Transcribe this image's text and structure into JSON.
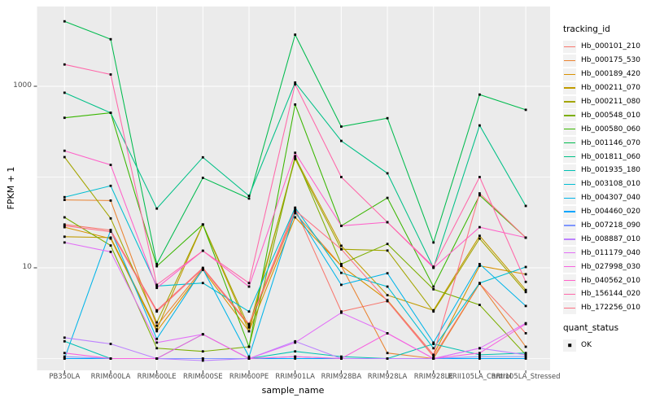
{
  "chart_data": {
    "type": "line",
    "title": "",
    "xlabel": "sample_name",
    "ylabel": "FPKM + 1",
    "scale": "log10",
    "ylim": [
      0.74,
      7500
    ],
    "grid": true,
    "legend_position": "right",
    "y_ticks": [
      {
        "label": "10",
        "value": 10
      },
      {
        "label": "1000",
        "value": 1000
      }
    ],
    "y_gridlines_major": [
      10,
      1000
    ],
    "y_gridlines_minor": [
      1,
      100
    ],
    "categories": [
      "PB350LA",
      "RRIM600LA",
      "RRIM600LE",
      "RRIM600SE",
      "RRIM600PE",
      "RRIM901LA",
      "RRIM928BA",
      "RRIM928LA",
      "RRIM928LE",
      "RRII105LA_Control",
      "RRII105LA_Stressed"
    ],
    "legend": {
      "tracking_title": "tracking_id",
      "quant_title": "quant_status",
      "quant_items": [
        {
          "label": "OK"
        }
      ]
    },
    "colors": {
      "panel_bg": "#EBEBEB",
      "grid": "#FFFFFF",
      "point": "#000000",
      "tick_text": "#4D4D4D",
      "tick_mark": "#333333",
      "legend_key_bg": "#F2F2F2"
    },
    "series": [
      {
        "id": "Hb_000101_210",
        "color": "#F8766D",
        "values": [
          30,
          26,
          3.4,
          10,
          2.4,
          45,
          3.3,
          4.3,
          1.05,
          6.7,
          1.9
        ]
      },
      {
        "id": "Hb_000175_530",
        "color": "#EA8331",
        "values": [
          56,
          55,
          2.3,
          9.8,
          2.3,
          40,
          10.5,
          1.15,
          1.0,
          6.7,
          1.35
        ]
      },
      {
        "id": "Hb_000189_420",
        "color": "#D89000",
        "values": [
          28,
          21,
          2.0,
          9.5,
          2.0,
          36,
          10.5,
          4.4,
          1.1,
          10.5,
          8.5
        ]
      },
      {
        "id": "Hb_000211_070",
        "color": "#C09B00",
        "values": [
          22,
          21.5,
          2.1,
          30,
          2.0,
          165,
          17.5,
          5.0,
          3.4,
          22.5,
          5.7
        ]
      },
      {
        "id": "Hb_000211_080",
        "color": "#A3A500",
        "values": [
          166,
          35,
          2.5,
          30,
          2.2,
          158,
          16,
          15.5,
          3.3,
          21,
          5.4
        ]
      },
      {
        "id": "Hb_000548_010",
        "color": "#7CAE00",
        "values": [
          36,
          17.6,
          1.3,
          1.2,
          1.35,
          170,
          11,
          18.3,
          5.8,
          3.9,
          1.1
        ]
      },
      {
        "id": "Hb_000580_060",
        "color": "#39B600",
        "values": [
          450,
          510,
          10.4,
          30,
          1.35,
          630,
          29,
          59,
          6.2,
          63,
          21.5
        ]
      },
      {
        "id": "Hb_001146_070",
        "color": "#00BB4E",
        "values": [
          5200,
          3300,
          11,
          98,
          58,
          3700,
          360,
          445,
          19,
          810,
          550
        ]
      },
      {
        "id": "Hb_001811_060",
        "color": "#00C087",
        "values": [
          850,
          510,
          45,
          165,
          62,
          1100,
          250,
          110,
          10,
          370,
          48
        ]
      },
      {
        "id": "Hb_001935_180",
        "color": "#00C0B2",
        "values": [
          1.55,
          1.0,
          1.0,
          1.85,
          1.0,
          1.2,
          1.05,
          1.0,
          1.45,
          1.1,
          1.15
        ]
      },
      {
        "id": "Hb_003108_010",
        "color": "#00BDD2",
        "values": [
          60,
          80,
          6.3,
          6.8,
          3.3,
          46,
          8.8,
          6.2,
          1.3,
          6.8,
          10.2
        ]
      },
      {
        "id": "Hb_004307_040",
        "color": "#00B4E9",
        "values": [
          1.0,
          26,
          1.65,
          9.7,
          1.05,
          42,
          6.5,
          8.7,
          1.5,
          11,
          3.8
        ]
      },
      {
        "id": "Hb_004460_020",
        "color": "#00A5FF",
        "values": [
          1.0,
          1.0,
          1.0,
          1.0,
          1.0,
          1.0,
          1.0,
          1.0,
          1.0,
          1.0,
          1.0
        ]
      },
      {
        "id": "Hb_007218_090",
        "color": "#7E96FF",
        "values": [
          1.05,
          1.0,
          1.0,
          1.0,
          1.0,
          1.05,
          1.0,
          1.0,
          1.0,
          1.05,
          1.05
        ]
      },
      {
        "id": "Hb_008887_010",
        "color": "#BC81FF",
        "values": [
          1.7,
          1.45,
          1.0,
          0.95,
          1.0,
          1.55,
          1.0,
          1.0,
          1.0,
          1.3,
          1.1
        ]
      },
      {
        "id": "Hb_011179_040",
        "color": "#E26EF7",
        "values": [
          19,
          15,
          1.5,
          1.85,
          1.0,
          1.5,
          3.2,
          1.9,
          1.0,
          1.3,
          2.45
        ]
      },
      {
        "id": "Hb_027998_030",
        "color": "#F763DF",
        "values": [
          1.15,
          1.0,
          1.0,
          1.85,
          1.0,
          1.05,
          1.0,
          1.9,
          1.0,
          1.15,
          2.4
        ]
      },
      {
        "id": "Hb_040562_010",
        "color": "#FF61C9",
        "values": [
          195,
          136,
          6.0,
          15.4,
          6.2,
          185,
          29,
          31.8,
          10,
          28,
          21.5
        ]
      },
      {
        "id": "Hb_156144_020",
        "color": "#FF67A9",
        "values": [
          1740,
          1350,
          6.5,
          15.4,
          6.8,
          1050,
          100,
          31.8,
          10.3,
          100,
          7
        ]
      },
      {
        "id": "Hb_172256_010",
        "color": "#FD7083",
        "values": [
          29,
          25,
          3.3,
          9.8,
          2.4,
          43,
          16,
          4.3,
          1.1,
          66,
          21.5
        ]
      }
    ]
  }
}
